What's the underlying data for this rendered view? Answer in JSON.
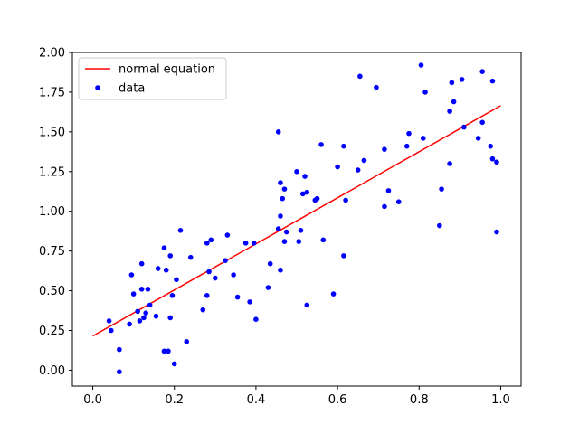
{
  "chart_data": {
    "type": "scatter",
    "title": "",
    "xlabel": "",
    "ylabel": "",
    "xlim": [
      -0.05,
      1.05
    ],
    "ylim": [
      -0.1,
      2.0
    ],
    "x_ticks": [
      "0.0",
      "0.2",
      "0.4",
      "0.6",
      "0.8",
      "1.0"
    ],
    "y_ticks": [
      "0.00",
      "0.25",
      "0.50",
      "0.75",
      "1.00",
      "1.25",
      "1.50",
      "1.75",
      "2.00"
    ],
    "legend_position": "top-left",
    "grid": false,
    "series": [
      {
        "name": "normal equation",
        "kind": "line",
        "color": "#ff0000",
        "x": [
          0.0,
          1.0
        ],
        "y": [
          0.215,
          1.665
        ]
      },
      {
        "name": "data",
        "kind": "scatter",
        "color": "#0000ff",
        "points": [
          [
            0.04,
            0.31
          ],
          [
            0.045,
            0.25
          ],
          [
            0.065,
            0.13
          ],
          [
            0.065,
            -0.01
          ],
          [
            0.09,
            0.29
          ],
          [
            0.095,
            0.6
          ],
          [
            0.1,
            0.48
          ],
          [
            0.11,
            0.37
          ],
          [
            0.115,
            0.31
          ],
          [
            0.12,
            0.67
          ],
          [
            0.12,
            0.51
          ],
          [
            0.125,
            0.33
          ],
          [
            0.13,
            0.36
          ],
          [
            0.135,
            0.51
          ],
          [
            0.14,
            0.41
          ],
          [
            0.155,
            0.34
          ],
          [
            0.16,
            0.64
          ],
          [
            0.175,
            0.77
          ],
          [
            0.175,
            0.12
          ],
          [
            0.18,
            0.63
          ],
          [
            0.185,
            0.12
          ],
          [
            0.19,
            0.72
          ],
          [
            0.19,
            0.33
          ],
          [
            0.195,
            0.47
          ],
          [
            0.2,
            0.04
          ],
          [
            0.205,
            0.57
          ],
          [
            0.215,
            0.88
          ],
          [
            0.23,
            0.18
          ],
          [
            0.24,
            0.71
          ],
          [
            0.27,
            0.38
          ],
          [
            0.28,
            0.47
          ],
          [
            0.28,
            0.8
          ],
          [
            0.285,
            0.62
          ],
          [
            0.29,
            0.82
          ],
          [
            0.3,
            0.58
          ],
          [
            0.325,
            0.69
          ],
          [
            0.33,
            0.85
          ],
          [
            0.345,
            0.6
          ],
          [
            0.355,
            0.46
          ],
          [
            0.375,
            0.8
          ],
          [
            0.385,
            0.43
          ],
          [
            0.395,
            0.8
          ],
          [
            0.4,
            0.32
          ],
          [
            0.43,
            0.52
          ],
          [
            0.435,
            0.67
          ],
          [
            0.455,
            1.5
          ],
          [
            0.455,
            0.89
          ],
          [
            0.46,
            1.18
          ],
          [
            0.46,
            0.97
          ],
          [
            0.46,
            0.63
          ],
          [
            0.465,
            1.08
          ],
          [
            0.47,
            1.14
          ],
          [
            0.47,
            0.81
          ],
          [
            0.475,
            0.87
          ],
          [
            0.5,
            1.25
          ],
          [
            0.505,
            0.81
          ],
          [
            0.51,
            0.88
          ],
          [
            0.515,
            1.11
          ],
          [
            0.52,
            1.22
          ],
          [
            0.525,
            1.12
          ],
          [
            0.525,
            0.41
          ],
          [
            0.545,
            1.07
          ],
          [
            0.55,
            1.08
          ],
          [
            0.56,
            1.42
          ],
          [
            0.565,
            0.82
          ],
          [
            0.59,
            0.48
          ],
          [
            0.6,
            1.28
          ],
          [
            0.615,
            1.41
          ],
          [
            0.615,
            0.72
          ],
          [
            0.62,
            1.07
          ],
          [
            0.65,
            1.26
          ],
          [
            0.655,
            1.85
          ],
          [
            0.665,
            1.32
          ],
          [
            0.695,
            1.78
          ],
          [
            0.715,
            1.03
          ],
          [
            0.715,
            1.39
          ],
          [
            0.725,
            1.13
          ],
          [
            0.75,
            1.06
          ],
          [
            0.77,
            1.41
          ],
          [
            0.775,
            1.49
          ],
          [
            0.805,
            1.92
          ],
          [
            0.81,
            1.46
          ],
          [
            0.815,
            1.75
          ],
          [
            0.85,
            0.91
          ],
          [
            0.855,
            1.14
          ],
          [
            0.875,
            1.63
          ],
          [
            0.875,
            1.3
          ],
          [
            0.88,
            1.81
          ],
          [
            0.885,
            1.69
          ],
          [
            0.905,
            1.83
          ],
          [
            0.91,
            1.53
          ],
          [
            0.945,
            1.46
          ],
          [
            0.955,
            1.88
          ],
          [
            0.955,
            1.56
          ],
          [
            0.975,
            1.41
          ],
          [
            0.98,
            1.33
          ],
          [
            0.98,
            1.82
          ],
          [
            0.99,
            1.31
          ],
          [
            0.99,
            0.87
          ]
        ]
      }
    ]
  }
}
